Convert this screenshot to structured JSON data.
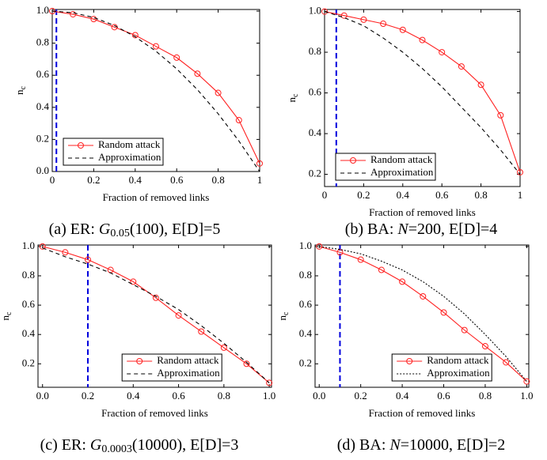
{
  "chart_data": [
    {
      "type": "line",
      "xlabel": "Fraction of removed links",
      "ylabel": [
        "n",
        "c"
      ],
      "caption": [
        "(a) ER: ",
        "G",
        "0.05",
        "(100), ",
        "E[D]=5"
      ],
      "x": [
        0,
        0.1,
        0.2,
        0.3,
        0.4,
        0.5,
        0.6,
        0.7,
        0.8,
        0.9,
        1
      ],
      "series": [
        {
          "name": "Random attack",
          "color": "#ff2020",
          "dash": "solid",
          "marker": "circle",
          "values": [
            1.0,
            0.98,
            0.95,
            0.9,
            0.85,
            0.78,
            0.71,
            0.61,
            0.49,
            0.32,
            0.05
          ]
        },
        {
          "name": "Approximation",
          "color": "#000000",
          "dash": "dashed",
          "marker": "none",
          "values": [
            1.0,
            0.99,
            0.96,
            0.91,
            0.84,
            0.75,
            0.64,
            0.51,
            0.36,
            0.19,
            0.0
          ]
        }
      ],
      "vline": 0.02,
      "vline_color": "#0000dd",
      "xlim": [
        0,
        1
      ],
      "ylim": [
        0,
        1.01
      ],
      "xticks": [
        0,
        0.2,
        0.4,
        0.6,
        0.8,
        1
      ],
      "yticks": [
        {
          "value": 0,
          "label": "0.0"
        },
        0.2,
        0.4,
        0.6,
        0.8,
        {
          "value": 1,
          "label": "1.0"
        }
      ],
      "legend": "lower left"
    },
    {
      "type": "line",
      "xlabel": "Fraction of removed links",
      "ylabel": [
        "n",
        "c"
      ],
      "caption": [
        "(b) BA: ",
        "N",
        "=200, ",
        "E[D]=4"
      ],
      "x": [
        0,
        0.1,
        0.2,
        0.3,
        0.4,
        0.5,
        0.6,
        0.7,
        0.8,
        0.9,
        1
      ],
      "series": [
        {
          "name": "Random attack",
          "color": "#ff2020",
          "dash": "solid",
          "marker": "circle",
          "values": [
            1.0,
            0.98,
            0.96,
            0.94,
            0.91,
            0.86,
            0.8,
            0.73,
            0.64,
            0.49,
            0.21
          ]
        },
        {
          "name": "Approximation",
          "color": "#000000",
          "dash": "dashed",
          "marker": "none",
          "values": [
            1.0,
            0.97,
            0.93,
            0.87,
            0.8,
            0.72,
            0.63,
            0.53,
            0.43,
            0.32,
            0.2
          ]
        }
      ],
      "vline": 0.06,
      "vline_color": "#0000dd",
      "xlim": [
        0,
        1
      ],
      "ylim": [
        0.14,
        1.01
      ],
      "xticks": [
        0,
        0.2,
        0.4,
        0.6,
        0.8,
        1
      ],
      "yticks": [
        0.2,
        0.4,
        0.6,
        0.8,
        {
          "value": 1,
          "label": "1.0"
        }
      ],
      "legend": "lower left"
    },
    {
      "type": "line",
      "xlabel": "Fraction of removed links",
      "ylabel": [
        "n",
        "c"
      ],
      "caption": [
        "(c) ER: ",
        "G",
        "0.0003",
        "(10000), ",
        "E[D]=3"
      ],
      "x": [
        0,
        0.1,
        0.2,
        0.3,
        0.4,
        0.5,
        0.6,
        0.7,
        0.8,
        0.9,
        1
      ],
      "series": [
        {
          "name": "Random attack",
          "color": "#ff2020",
          "dash": "solid",
          "marker": "circle",
          "values": [
            1.0,
            0.96,
            0.91,
            0.84,
            0.76,
            0.65,
            0.53,
            0.42,
            0.31,
            0.2,
            0.07
          ]
        },
        {
          "name": "Approximation",
          "color": "#000000",
          "dash": "dashed",
          "marker": "none",
          "values": [
            0.99,
            0.93,
            0.88,
            0.82,
            0.74,
            0.66,
            0.57,
            0.46,
            0.34,
            0.21,
            0.07
          ]
        }
      ],
      "vline": 0.2,
      "vline_color": "#0000dd",
      "xlim": [
        -0.02,
        1.01
      ],
      "ylim": [
        0.04,
        1.01
      ],
      "xticks": [
        {
          "value": 0,
          "label": "0.0"
        },
        0.2,
        0.4,
        0.6,
        0.8,
        {
          "value": 1,
          "label": "1.0"
        }
      ],
      "yticks": [
        0.2,
        0.4,
        0.6,
        0.8,
        {
          "value": 1,
          "label": "1.0"
        }
      ],
      "legend": "lower center"
    },
    {
      "type": "line",
      "xlabel": "Fraction of removed links",
      "ylabel": [
        "n",
        "c"
      ],
      "caption": [
        "(d) BA: ",
        "N",
        "=10000, ",
        "E[D]=2"
      ],
      "x": [
        0,
        0.1,
        0.2,
        0.3,
        0.4,
        0.5,
        0.6,
        0.7,
        0.8,
        0.9,
        1
      ],
      "series": [
        {
          "name": "Random attack",
          "color": "#ff2020",
          "dash": "solid",
          "marker": "circle",
          "values": [
            1.0,
            0.96,
            0.91,
            0.84,
            0.76,
            0.66,
            0.55,
            0.43,
            0.32,
            0.21,
            0.08
          ]
        },
        {
          "name": "Approximation",
          "color": "#000000",
          "dash": "dotted",
          "marker": "none",
          "values": [
            1.0,
            0.98,
            0.95,
            0.9,
            0.84,
            0.76,
            0.66,
            0.54,
            0.4,
            0.25,
            0.08
          ]
        }
      ],
      "vline": 0.1,
      "vline_color": "#0000dd",
      "xlim": [
        -0.02,
        1.01
      ],
      "ylim": [
        0.04,
        1.01
      ],
      "xticks": [
        {
          "value": 0,
          "label": "0.0"
        },
        0.2,
        0.4,
        0.6,
        0.8,
        {
          "value": 1,
          "label": "1.0"
        }
      ],
      "yticks": [
        0.2,
        0.4,
        0.6,
        0.8,
        {
          "value": 1,
          "label": "1.0"
        }
      ],
      "legend": "lower center"
    }
  ]
}
